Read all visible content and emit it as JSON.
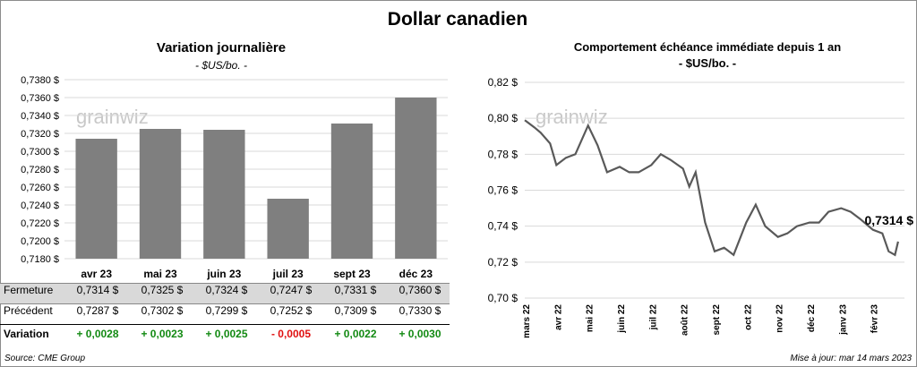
{
  "title": "Dollar canadien",
  "left_chart": {
    "title": "Variation  journalière",
    "subtitle": "- $US/bo. -"
  },
  "right_chart": {
    "title": "Comportement échéance immédiate depuis 1 an",
    "subtitle": "- $US/bo. -",
    "last_value_label": "0,7314 $"
  },
  "watermark": "grainwiz",
  "table": {
    "rows": [
      {
        "label": "Fermeture",
        "values": [
          "0,7314  $",
          "0,7325  $",
          "0,7324  $",
          "0,7247  $",
          "0,7331  $",
          "0,7360  $"
        ]
      },
      {
        "label": "Précédent",
        "values": [
          "0,7287  $",
          "0,7302  $",
          "0,7299  $",
          "0,7252  $",
          "0,7309  $",
          "0,7330  $"
        ]
      },
      {
        "label": "Variation",
        "values": [
          "+ 0,0028",
          "+ 0,0023",
          "+ 0,0025",
          "- 0,0005",
          "+ 0,0022",
          "+ 0,0030"
        ],
        "signs": [
          "pos",
          "pos",
          "pos",
          "neg",
          "pos",
          "pos"
        ]
      }
    ]
  },
  "colors": {
    "bar": "#7f7f7f",
    "line": "#595959",
    "positive": "#138a13",
    "negative": "#e01010"
  },
  "source": "Source: CME Group",
  "update": "Mise à jour: mar 14 mars 2023",
  "chart_data": [
    {
      "type": "bar",
      "title": "Variation  journalière",
      "subtitle": "- $US/bo. -",
      "categories": [
        "avr 23",
        "mai 23",
        "juin 23",
        "juil 23",
        "sept 23",
        "déc 23"
      ],
      "values": [
        0.7314,
        0.7325,
        0.7324,
        0.7247,
        0.7331,
        0.736
      ],
      "ylim": [
        0.718,
        0.738
      ],
      "yticks": [
        "0,7180 $",
        "0,7200 $",
        "0,7220 $",
        "0,7240 $",
        "0,7260 $",
        "0,7280 $",
        "0,7300 $",
        "0,7320 $",
        "0,7340 $",
        "0,7360 $",
        "0,7380 $"
      ],
      "grid": true
    },
    {
      "type": "line",
      "title": "Comportement échéance immédiate depuis 1 an",
      "subtitle": "- $US/bo. -",
      "x_ticks": [
        "mars 22",
        "avr 22",
        "mai 22",
        "juin 22",
        "juil 22",
        "août 22",
        "sept 22",
        "oct 22",
        "nov 22",
        "déc 22",
        "janv 23",
        "févr 23"
      ],
      "x": [
        0,
        0.3,
        0.5,
        0.8,
        1.0,
        1.3,
        1.6,
        2.0,
        2.3,
        2.6,
        3.0,
        3.3,
        3.6,
        4.0,
        4.3,
        4.6,
        5.0,
        5.2,
        5.4,
        5.7,
        6.0,
        6.3,
        6.6,
        7.0,
        7.3,
        7.6,
        8.0,
        8.3,
        8.6,
        9.0,
        9.3,
        9.6,
        10.0,
        10.3,
        10.6,
        11.0,
        11.3,
        11.5,
        11.7,
        11.8
      ],
      "y": [
        0.799,
        0.795,
        0.792,
        0.786,
        0.774,
        0.778,
        0.78,
        0.796,
        0.785,
        0.77,
        0.773,
        0.77,
        0.77,
        0.774,
        0.78,
        0.777,
        0.772,
        0.762,
        0.77,
        0.742,
        0.726,
        0.728,
        0.724,
        0.742,
        0.752,
        0.74,
        0.734,
        0.736,
        0.74,
        0.742,
        0.742,
        0.748,
        0.75,
        0.748,
        0.744,
        0.738,
        0.736,
        0.726,
        0.724,
        0.7314
      ],
      "ylim": [
        0.7,
        0.82
      ],
      "yticks": [
        "0,70 $",
        "0,72 $",
        "0,74 $",
        "0,76 $",
        "0,78 $",
        "0,80 $",
        "0,82 $"
      ],
      "grid": true
    }
  ]
}
